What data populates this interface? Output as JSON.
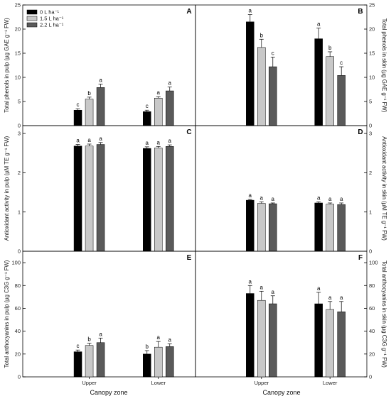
{
  "colors": {
    "series": [
      "#000000",
      "#c8c8c8",
      "#5a5a5a"
    ],
    "bar_stroke": "#000000",
    "axis": "#000000"
  },
  "chart_data": [
    {
      "type": "bar",
      "panel": "A",
      "ylabel": "Total phenols in pulp (µg GAE g⁻¹ FW)",
      "ylim": [
        0,
        25
      ],
      "yticks": [
        0,
        5,
        10,
        15,
        20,
        25
      ],
      "categories": [
        "Upper",
        "Lower"
      ],
      "series": [
        {
          "name": "0 L ha⁻¹",
          "values": [
            3.2,
            2.9
          ],
          "errors": [
            0.3,
            0.3
          ],
          "letters": [
            "c",
            "c"
          ]
        },
        {
          "name": "1.5 L ha⁻¹",
          "values": [
            5.5,
            5.7
          ],
          "errors": [
            0.4,
            0.3
          ],
          "letters": [
            "b",
            "a"
          ]
        },
        {
          "name": "2.2 L ha⁻¹",
          "values": [
            7.9,
            7.2
          ],
          "errors": [
            0.7,
            0.8
          ],
          "letters": [
            "a",
            "a"
          ]
        }
      ]
    },
    {
      "type": "bar",
      "panel": "B",
      "ylabel": "Total phenols in skin (µg GAE g⁻¹ FW)",
      "ylim": [
        0,
        25
      ],
      "yticks": [
        0,
        5,
        10,
        15,
        20,
        25
      ],
      "categories": [
        "Upper",
        "Lower"
      ],
      "series": [
        {
          "name": "0 L ha⁻¹",
          "values": [
            21.5,
            18.0
          ],
          "errors": [
            1.5,
            2.2
          ],
          "letters": [
            "a",
            "a"
          ]
        },
        {
          "name": "1.5 L ha⁻¹",
          "values": [
            16.2,
            14.3
          ],
          "errors": [
            1.7,
            1.0
          ],
          "letters": [
            "b",
            "b"
          ]
        },
        {
          "name": "2.2 L ha⁻¹",
          "values": [
            12.2,
            10.4
          ],
          "errors": [
            2.0,
            1.8
          ],
          "letters": [
            "c",
            "c"
          ]
        }
      ]
    },
    {
      "type": "bar",
      "panel": "C",
      "ylabel": "Antioxidant activity in pulp (µM TE g⁻¹ FW)",
      "ylim": [
        0,
        3.2
      ],
      "yticks": [
        0,
        1,
        2,
        3
      ],
      "categories": [
        "Upper",
        "Lower"
      ],
      "series": [
        {
          "name": "0 L ha⁻¹",
          "values": [
            2.68,
            2.62
          ],
          "errors": [
            0.04,
            0.04
          ],
          "letters": [
            "a",
            "a"
          ]
        },
        {
          "name": "1.5 L ha⁻¹",
          "values": [
            2.68,
            2.63
          ],
          "errors": [
            0.05,
            0.04
          ],
          "letters": [
            "a",
            "a"
          ]
        },
        {
          "name": "2.2 L ha⁻¹",
          "values": [
            2.72,
            2.67
          ],
          "errors": [
            0.05,
            0.04
          ],
          "letters": [
            "a",
            "a"
          ]
        }
      ]
    },
    {
      "type": "bar",
      "panel": "D",
      "ylabel": "Antioxidant activity in skin (µM TE g⁻¹ FW)",
      "ylim": [
        0,
        3.2
      ],
      "yticks": [
        0,
        1,
        2,
        3
      ],
      "categories": [
        "Upper",
        "Lower"
      ],
      "series": [
        {
          "name": "0 L ha⁻¹",
          "values": [
            1.3,
            1.23
          ],
          "errors": [
            0.02,
            0.03
          ],
          "letters": [
            "a",
            "a"
          ]
        },
        {
          "name": "1.5 L ha⁻¹",
          "values": [
            1.22,
            1.2
          ],
          "errors": [
            0.04,
            0.03
          ],
          "letters": [
            "a",
            "a"
          ]
        },
        {
          "name": "2.2 L ha⁻¹",
          "values": [
            1.21,
            1.19
          ],
          "errors": [
            0.02,
            0.04
          ],
          "letters": [
            "a",
            "a"
          ]
        }
      ]
    },
    {
      "type": "bar",
      "panel": "E",
      "ylabel": "Total anthocyanins in pulp (µg C3G g⁻¹ FW)",
      "ylim": [
        0,
        110
      ],
      "yticks": [
        0,
        20,
        40,
        60,
        80,
        100
      ],
      "categories": [
        "Upper",
        "Lower"
      ],
      "series": [
        {
          "name": "0 L ha⁻¹",
          "values": [
            22,
            20
          ],
          "errors": [
            1.5,
            3
          ],
          "letters": [
            "c",
            "b"
          ]
        },
        {
          "name": "1.5 L ha⁻¹",
          "values": [
            27.5,
            26
          ],
          "errors": [
            2,
            5
          ],
          "letters": [
            "b",
            "a"
          ]
        },
        {
          "name": "2.2 L ha⁻¹",
          "values": [
            30,
            26.5
          ],
          "errors": [
            4,
            2.5
          ],
          "letters": [
            "a",
            "a"
          ]
        }
      ]
    },
    {
      "type": "bar",
      "panel": "F",
      "ylabel": "Total anthocyanins in skin (µg C3G g⁻¹ FW)",
      "ylim": [
        0,
        110
      ],
      "yticks": [
        0,
        20,
        40,
        60,
        80,
        100
      ],
      "categories": [
        "Upper",
        "Lower"
      ],
      "series": [
        {
          "name": "0 L ha⁻¹",
          "values": [
            73,
            64
          ],
          "errors": [
            7,
            10
          ],
          "letters": [
            "a",
            "a"
          ]
        },
        {
          "name": "1.5 L ha⁻¹",
          "values": [
            67,
            59
          ],
          "errors": [
            8,
            7
          ],
          "letters": [
            "a",
            "a"
          ]
        },
        {
          "name": "2.2 L ha⁻¹",
          "values": [
            64,
            57
          ],
          "errors": [
            7,
            9
          ],
          "letters": [
            "a",
            "a"
          ]
        }
      ]
    }
  ],
  "legend": {
    "placement": "top-left of panel A",
    "items": [
      "0 L ha⁻¹",
      "1.5 L ha⁻¹",
      "2.2 L ha⁻¹"
    ]
  },
  "xlabels": [
    "Canopy zone",
    "Canopy zone"
  ]
}
